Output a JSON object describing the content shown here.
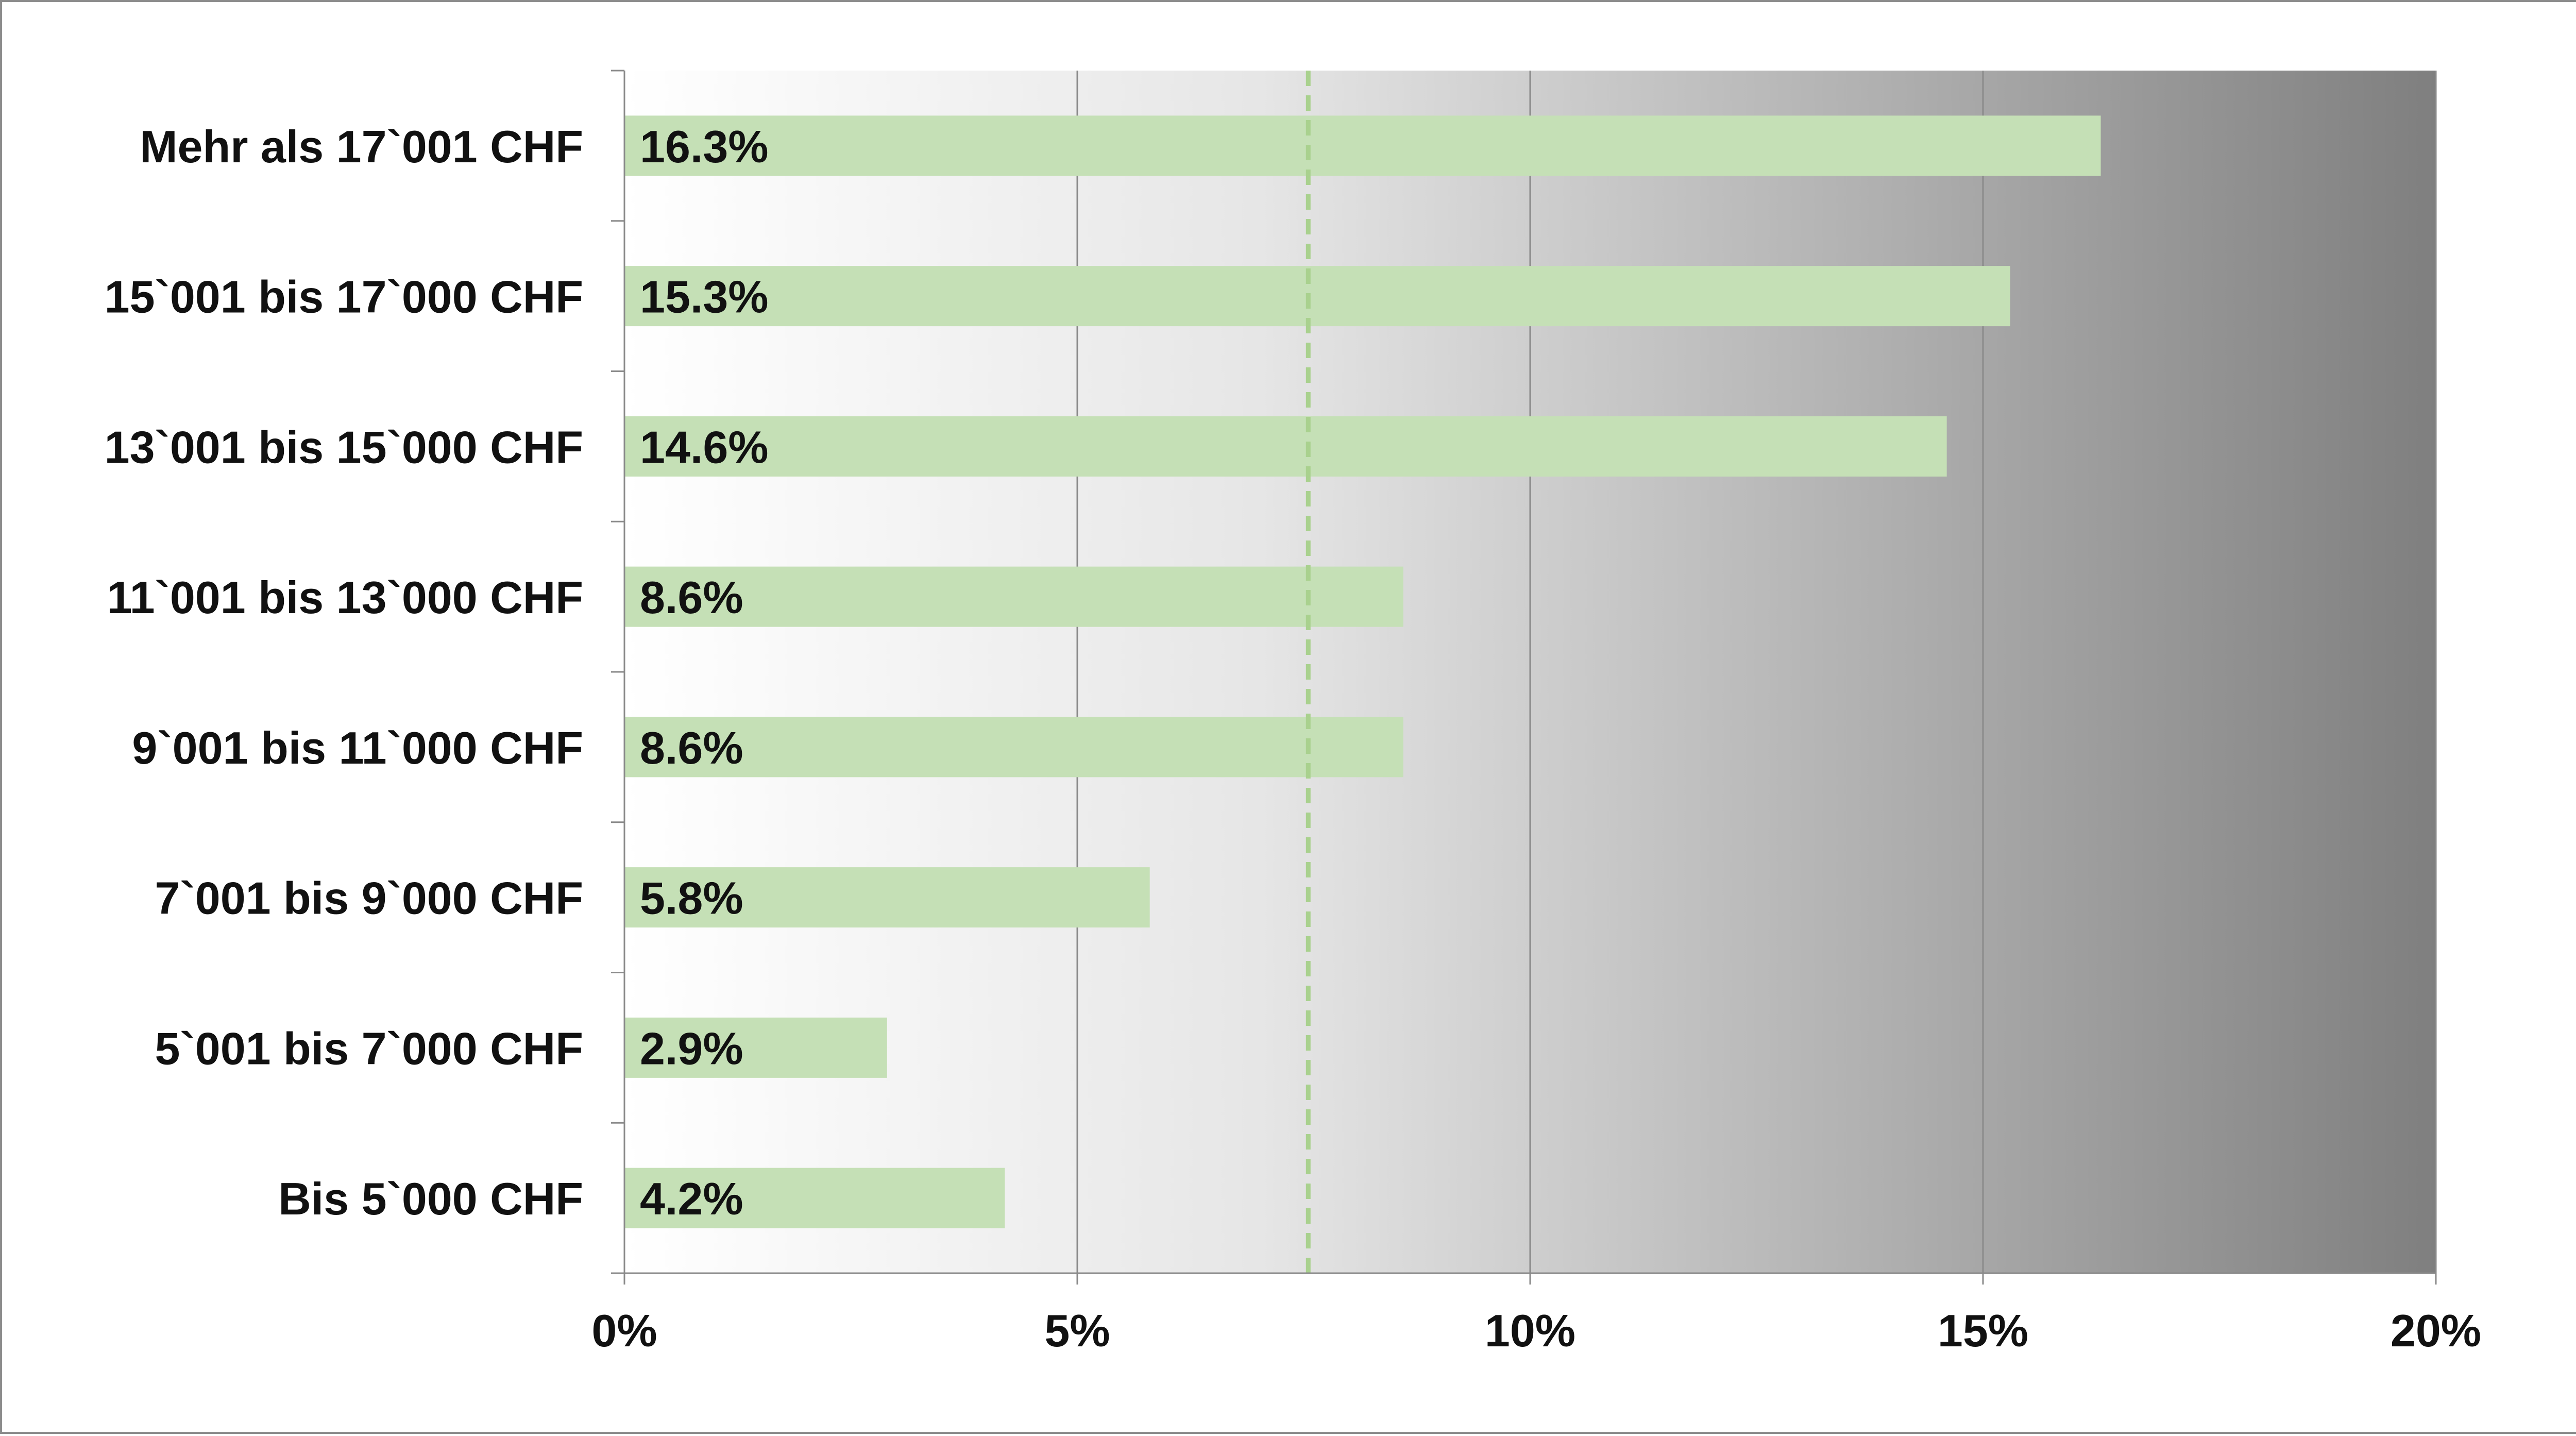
{
  "chart_data": {
    "type": "bar",
    "orientation": "horizontal",
    "categories": [
      "Mehr als 17`001 CHF",
      "15`001 bis 17`000 CHF",
      "13`001 bis 15`000 CHF",
      "11`001 bis 13`000 CHF",
      "9`001 bis 11`000 CHF",
      "7`001 bis 9`000 CHF",
      "5`001 bis 7`000 CHF",
      "Bis 5`000 CHF"
    ],
    "values": [
      16.3,
      15.3,
      14.6,
      8.6,
      8.6,
      5.8,
      2.9,
      4.2
    ],
    "value_labels": [
      "16.3%",
      "15.3%",
      "14.6%",
      "8.6%",
      "8.6%",
      "5.8%",
      "2.9%",
      "4.2%"
    ],
    "xlim": [
      0,
      20
    ],
    "x_ticks": [
      0,
      5,
      10,
      15,
      20
    ],
    "x_tick_labels": [
      "0%",
      "5%",
      "10%",
      "15%",
      "20%"
    ],
    "reference_line": 7.55,
    "vertical_gridlines": true,
    "bar_color": "#c5e0b6",
    "reference_line_color": "#a9d18e",
    "background_gradient": [
      "#ffffff",
      "#808080"
    ],
    "title": "",
    "xlabel": "",
    "ylabel": ""
  }
}
